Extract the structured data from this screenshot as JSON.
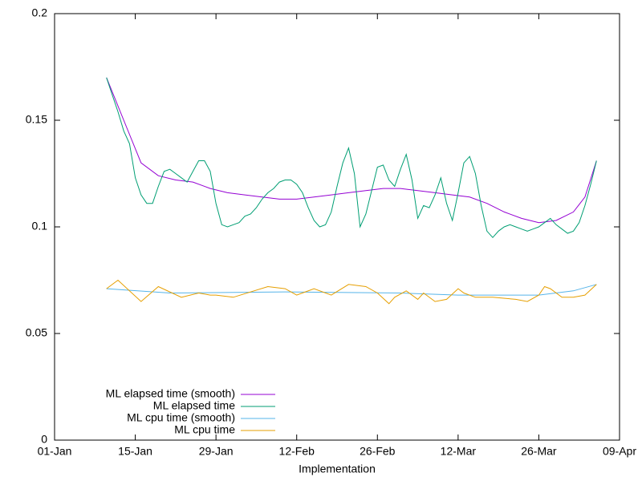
{
  "chart_data": {
    "type": "line",
    "xlabel": "Implementation",
    "xlim": [
      "01-Jan",
      "09-Apr"
    ],
    "xticks": [
      "01-Jan",
      "15-Jan",
      "29-Jan",
      "12-Feb",
      "26-Feb",
      "12-Mar",
      "26-Mar",
      "09-Apr"
    ],
    "ylim": [
      0,
      0.2
    ],
    "yticks": [
      0,
      0.05,
      0.1,
      0.15,
      0.2
    ],
    "grid": false,
    "legend": "bottom left",
    "series": [
      {
        "name": "ML elapsed time (smooth)",
        "color": "#9400d3",
        "x": [
          "10-Jan",
          "13-Jan",
          "16-Jan",
          "19-Jan",
          "22-Jan",
          "25-Jan",
          "28-Jan",
          "31-Jan",
          "03-Feb",
          "06-Feb",
          "09-Feb",
          "12-Feb",
          "15-Feb",
          "18-Feb",
          "21-Feb",
          "24-Feb",
          "27-Feb",
          "02-Mar",
          "05-Mar",
          "08-Mar",
          "11-Mar",
          "14-Mar",
          "17-Mar",
          "20-Mar",
          "23-Mar",
          "26-Mar",
          "29-Mar",
          "01-Apr",
          "03-Apr",
          "05-Apr"
        ],
        "values": [
          0.17,
          0.15,
          0.13,
          0.124,
          0.122,
          0.121,
          0.118,
          0.116,
          0.115,
          0.114,
          0.113,
          0.113,
          0.114,
          0.115,
          0.116,
          0.117,
          0.118,
          0.118,
          0.117,
          0.116,
          0.115,
          0.114,
          0.111,
          0.107,
          0.104,
          0.102,
          0.103,
          0.107,
          0.114,
          0.131
        ]
      },
      {
        "name": "ML elapsed time",
        "color": "#009e73",
        "x": [
          "10-Jan",
          "11-Jan",
          "12-Jan",
          "13-Jan",
          "14-Jan",
          "15-Jan",
          "16-Jan",
          "17-Jan",
          "18-Jan",
          "19-Jan",
          "20-Jan",
          "21-Jan",
          "22-Jan",
          "23-Jan",
          "24-Jan",
          "25-Jan",
          "26-Jan",
          "27-Jan",
          "28-Jan",
          "29-Jan",
          "30-Jan",
          "31-Jan",
          "01-Feb",
          "02-Feb",
          "03-Feb",
          "04-Feb",
          "05-Feb",
          "06-Feb",
          "07-Feb",
          "08-Feb",
          "09-Feb",
          "10-Feb",
          "11-Feb",
          "12-Feb",
          "13-Feb",
          "14-Feb",
          "15-Feb",
          "16-Feb",
          "17-Feb",
          "18-Feb",
          "19-Feb",
          "20-Feb",
          "21-Feb",
          "22-Feb",
          "23-Feb",
          "24-Feb",
          "25-Feb",
          "26-Feb",
          "27-Feb",
          "28-Feb",
          "01-Mar",
          "02-Mar",
          "03-Mar",
          "04-Mar",
          "05-Mar",
          "06-Mar",
          "07-Mar",
          "08-Mar",
          "09-Mar",
          "10-Mar",
          "11-Mar",
          "12-Mar",
          "13-Mar",
          "14-Mar",
          "15-Mar",
          "16-Mar",
          "17-Mar",
          "18-Mar",
          "19-Mar",
          "20-Mar",
          "21-Mar",
          "22-Mar",
          "23-Mar",
          "24-Mar",
          "25-Mar",
          "26-Mar",
          "27-Mar",
          "28-Mar",
          "29-Mar",
          "30-Mar",
          "31-Mar",
          "01-Apr",
          "02-Apr",
          "03-Apr",
          "04-Apr",
          "05-Apr"
        ],
        "values": [
          0.17,
          0.162,
          0.154,
          0.145,
          0.139,
          0.123,
          0.115,
          0.111,
          0.111,
          0.119,
          0.126,
          0.127,
          0.125,
          0.123,
          0.121,
          0.126,
          0.131,
          0.131,
          0.126,
          0.111,
          0.101,
          0.1,
          0.101,
          0.102,
          0.105,
          0.106,
          0.109,
          0.113,
          0.116,
          0.118,
          0.121,
          0.122,
          0.122,
          0.12,
          0.116,
          0.109,
          0.103,
          0.1,
          0.101,
          0.107,
          0.119,
          0.13,
          0.137,
          0.125,
          0.1,
          0.106,
          0.117,
          0.128,
          0.129,
          0.122,
          0.119,
          0.127,
          0.134,
          0.122,
          0.104,
          0.11,
          0.109,
          0.115,
          0.123,
          0.111,
          0.103,
          0.116,
          0.13,
          0.133,
          0.125,
          0.11,
          0.098,
          0.095,
          0.098,
          0.1,
          0.101,
          0.1,
          0.099,
          0.098,
          0.099,
          0.1,
          0.102,
          0.104,
          0.101,
          0.099,
          0.097,
          0.098,
          0.102,
          0.11,
          0.12,
          0.131
        ]
      },
      {
        "name": "ML cpu time (smooth)",
        "color": "#56b4e9",
        "x": [
          "10-Jan",
          "21-Jan",
          "10-Feb",
          "02-Mar",
          "12-Mar",
          "26-Mar",
          "01-Apr",
          "05-Apr"
        ],
        "values": [
          0.071,
          0.069,
          0.0695,
          0.069,
          0.068,
          0.068,
          0.07,
          0.073
        ]
      },
      {
        "name": "ML cpu time",
        "color": "#e69f00",
        "x": [
          "10-Jan",
          "12-Jan",
          "16-Jan",
          "19-Jan",
          "23-Jan",
          "26-Jan",
          "28-Jan",
          "29-Jan",
          "01-Feb",
          "07-Feb",
          "10-Feb",
          "12-Feb",
          "15-Feb",
          "18-Feb",
          "21-Feb",
          "24-Feb",
          "26-Feb",
          "28-Feb",
          "01-Mar",
          "03-Mar",
          "05-Mar",
          "06-Mar",
          "08-Mar",
          "10-Mar",
          "12-Mar",
          "13-Mar",
          "15-Mar",
          "18-Mar",
          "22-Mar",
          "24-Mar",
          "26-Mar",
          "27-Mar",
          "28-Mar",
          "30-Mar",
          "01-Apr",
          "03-Apr",
          "05-Apr"
        ],
        "values": [
          0.071,
          0.075,
          0.065,
          0.072,
          0.067,
          0.069,
          0.068,
          0.068,
          0.067,
          0.072,
          0.071,
          0.068,
          0.071,
          0.068,
          0.073,
          0.072,
          0.069,
          0.064,
          0.067,
          0.07,
          0.066,
          0.069,
          0.065,
          0.066,
          0.071,
          0.069,
          0.067,
          0.067,
          0.066,
          0.065,
          0.068,
          0.072,
          0.071,
          0.067,
          0.067,
          0.068,
          0.073
        ]
      }
    ]
  }
}
